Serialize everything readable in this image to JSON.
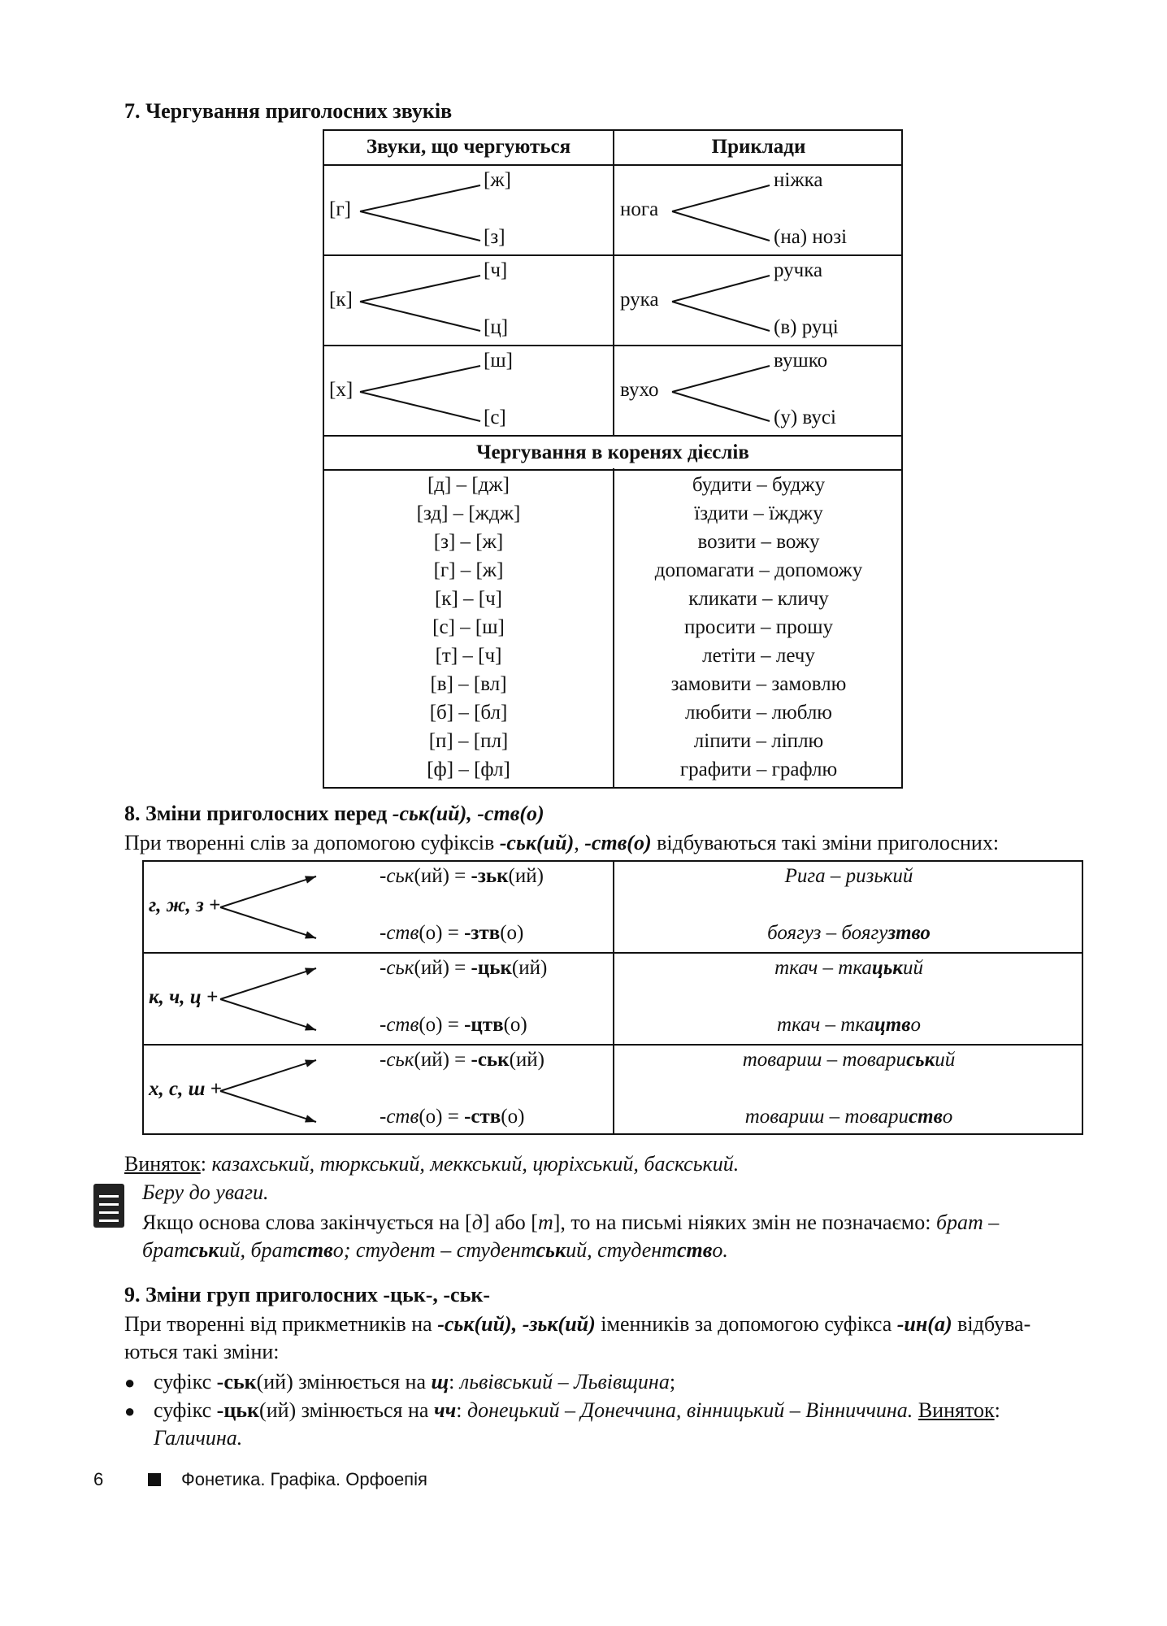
{
  "section7": {
    "title": "7. Чергування приголосних звуків",
    "header": [
      "Звуки, що чергуються",
      "Приклади"
    ],
    "branch_rows": [
      {
        "src": "[г]",
        "up": "[ж]",
        "down": "[з]",
        "ex": "нога",
        "ex_up": "ніжка",
        "ex_down": "(на) нозі"
      },
      {
        "src": "[к]",
        "up": "[ч]",
        "down": "[ц]",
        "ex": "рука",
        "ex_up": "ручка",
        "ex_down": "(в) руці"
      },
      {
        "src": "[х]",
        "up": "[ш]",
        "down": "[с]",
        "ex": "вухо",
        "ex_up": "вушко",
        "ex_down": "(у) вусі"
      }
    ],
    "subheader": "Чергування в коренях дієслів",
    "verb_rows": [
      [
        "[д] – [дж]",
        "будити – буджу"
      ],
      [
        "[зд] – [ждж]",
        "їздити – їжджу"
      ],
      [
        "[з] – [ж]",
        "возити – вожу"
      ],
      [
        "[г] – [ж]",
        "допомагати – допоможу"
      ],
      [
        "[к] – [ч]",
        "кликати – кличу"
      ],
      [
        "[с] – [ш]",
        "просити – прошу"
      ],
      [
        "[т] – [ч]",
        "летіти – лечу"
      ],
      [
        "[в] – [вл]",
        "замовити – замовлю"
      ],
      [
        "[б] – [бл]",
        "любити – люблю"
      ],
      [
        "[п] – [пл]",
        "ліпити – ліплю"
      ],
      [
        "[ф] – [фл]",
        "графити – графлю"
      ]
    ]
  },
  "section8": {
    "title": [
      {
        "t": "8. Зміни приголосних перед ",
        "s": "b"
      },
      {
        "t": "-ськ(ий), -ств(о)",
        "s": "bi"
      }
    ],
    "intro": [
      {
        "t": "При творенні слів за допомогою суфіксів "
      },
      {
        "t": "-ськ(ий)",
        "s": "bi"
      },
      {
        "t": ", "
      },
      {
        "t": "-ств(о)",
        "s": "bi"
      },
      {
        "t": " відбуваються такі зміни приголосних:"
      }
    ],
    "rows": [
      {
        "src": "г, ж, з +",
        "up": [
          {
            "t": "-ськ",
            "s": "i"
          },
          {
            "t": "(ий) = "
          },
          {
            "t": "-зьк",
            "s": "b"
          },
          {
            "t": "(ий)"
          }
        ],
        "down": [
          {
            "t": "-ств",
            "s": "i"
          },
          {
            "t": "(о) = "
          },
          {
            "t": "-зтв",
            "s": "b"
          },
          {
            "t": "(о)"
          }
        ],
        "ex_up": [
          {
            "t": "Рига – ",
            "s": "i"
          },
          {
            "t": "ризький",
            "s": "i"
          }
        ],
        "ex_down": [
          {
            "t": "боягуз – боягу",
            "s": "i"
          },
          {
            "t": "зтво",
            "s": "bi"
          }
        ]
      },
      {
        "src": "к, ч, ц +",
        "up": [
          {
            "t": "-ськ",
            "s": "i"
          },
          {
            "t": "(ий) = "
          },
          {
            "t": "-цьк",
            "s": "b"
          },
          {
            "t": "(ий)"
          }
        ],
        "down": [
          {
            "t": "-ств",
            "s": "i"
          },
          {
            "t": "(о) = "
          },
          {
            "t": "-цтв",
            "s": "b"
          },
          {
            "t": "(о)"
          }
        ],
        "ex_up": [
          {
            "t": "ткач – тка",
            "s": "i"
          },
          {
            "t": "цьк",
            "s": "bi"
          },
          {
            "t": "ий",
            "s": "i"
          }
        ],
        "ex_down": [
          {
            "t": "ткач – тка",
            "s": "i"
          },
          {
            "t": "цтв",
            "s": "bi"
          },
          {
            "t": "о",
            "s": "i"
          }
        ]
      },
      {
        "src": "х, с, ш +",
        "up": [
          {
            "t": "-ськ",
            "s": "i"
          },
          {
            "t": "(ий) = "
          },
          {
            "t": "-ськ",
            "s": "b"
          },
          {
            "t": "(ий)"
          }
        ],
        "down": [
          {
            "t": "-ств",
            "s": "i"
          },
          {
            "t": "(о) = "
          },
          {
            "t": "-ств",
            "s": "b"
          },
          {
            "t": "(о)"
          }
        ],
        "ex_up": [
          {
            "t": "товариш – товари",
            "s": "i"
          },
          {
            "t": "ськ",
            "s": "bi"
          },
          {
            "t": "ий",
            "s": "i"
          }
        ],
        "ex_down": [
          {
            "t": "товариш – товари",
            "s": "i"
          },
          {
            "t": "ств",
            "s": "bi"
          },
          {
            "t": "о",
            "s": "i"
          }
        ]
      }
    ],
    "exception": [
      {
        "t": "Виняток",
        "s": "u"
      },
      {
        "t": ": "
      },
      {
        "t": "казахський, тюркський, меккський, цюріхський, баскський.",
        "s": "i"
      }
    ],
    "note_title": "Беру до уваги.",
    "note_line1": [
      {
        "t": "Якщо основа слова закінчується на ["
      },
      {
        "t": "д",
        "s": "i"
      },
      {
        "t": "] або ["
      },
      {
        "t": "т",
        "s": "i"
      },
      {
        "t": "], то на письмі ніяких змін не позначаємо: "
      },
      {
        "t": "брат –",
        "s": "i"
      }
    ],
    "note_line2": [
      {
        "t": "брат",
        "s": "i"
      },
      {
        "t": "ськ",
        "s": "bi"
      },
      {
        "t": "ий, брат",
        "s": "i"
      },
      {
        "t": "ств",
        "s": "bi"
      },
      {
        "t": "о; студент – студент",
        "s": "i"
      },
      {
        "t": "ськ",
        "s": "bi"
      },
      {
        "t": "ий, студент",
        "s": "i"
      },
      {
        "t": "ств",
        "s": "bi"
      },
      {
        "t": "о.",
        "s": "i"
      }
    ]
  },
  "section9": {
    "title": [
      {
        "t": "9. Зміни груп приголосних ",
        "s": "b"
      },
      {
        "t": "-цьк-, -ськ-",
        "s": "b"
      }
    ],
    "intro1": [
      {
        "t": "При творенні від прикметників на "
      },
      {
        "t": "-ськ(ий), -зьк(ий)",
        "s": "bi"
      },
      {
        "t": " іменників за допомогою суфікса "
      },
      {
        "t": "-ин(а)",
        "s": "bi"
      },
      {
        "t": " відбува-"
      }
    ],
    "intro2": [
      {
        "t": "ються такі зміни:"
      }
    ],
    "bullet1": [
      {
        "t": "суфікс "
      },
      {
        "t": "-ськ",
        "s": "b"
      },
      {
        "t": "(ий) змінюється на "
      },
      {
        "t": "щ",
        "s": "bi"
      },
      {
        "t": ": "
      },
      {
        "t": "львівський – Львівщина",
        "s": "i"
      },
      {
        "t": ";"
      }
    ],
    "bullet2": [
      {
        "t": "суфікс "
      },
      {
        "t": "-цьк",
        "s": "b"
      },
      {
        "t": "(ий) змінюється на "
      },
      {
        "t": "чч",
        "s": "bi"
      },
      {
        "t": ": "
      },
      {
        "t": "донецький – Донеччина, вінницький – Вінниччина.",
        "s": "i"
      },
      {
        "t": " "
      },
      {
        "t": "Виняток",
        "s": "u"
      },
      {
        "t": ":"
      }
    ],
    "bullet2_cont": [
      {
        "t": "Галичина.",
        "s": "i"
      }
    ]
  },
  "footer": {
    "page_number": "6",
    "section": "Фонетика. Графіка. Орфоепія"
  }
}
